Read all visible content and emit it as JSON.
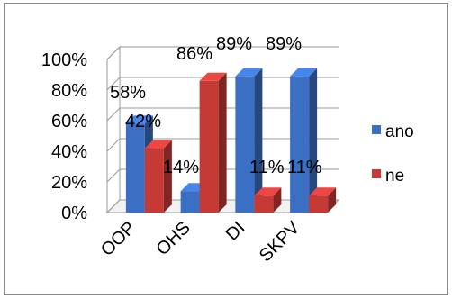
{
  "chart_data": {
    "type": "bar",
    "title": "",
    "xlabel": "",
    "ylabel": "",
    "categories": [
      "OOP",
      "OHS",
      "DI",
      "SKPV"
    ],
    "series": [
      {
        "name": "ano",
        "values": [
          58,
          14,
          89,
          89
        ],
        "labels": [
          "58%",
          "14%",
          "89%",
          "89%"
        ]
      },
      {
        "name": "ne",
        "values": [
          42,
          86,
          11,
          11
        ],
        "labels": [
          "42%",
          "86%",
          "11%",
          "11%"
        ]
      }
    ],
    "ylim": [
      0,
      100
    ],
    "ytick_labels": [
      "0%",
      "20%",
      "40%",
      "60%",
      "80%",
      "100%"
    ],
    "grid": true,
    "legend_position": "right",
    "colors": {
      "ano": "#3a6fc4",
      "ne": "#c63a36"
    }
  }
}
